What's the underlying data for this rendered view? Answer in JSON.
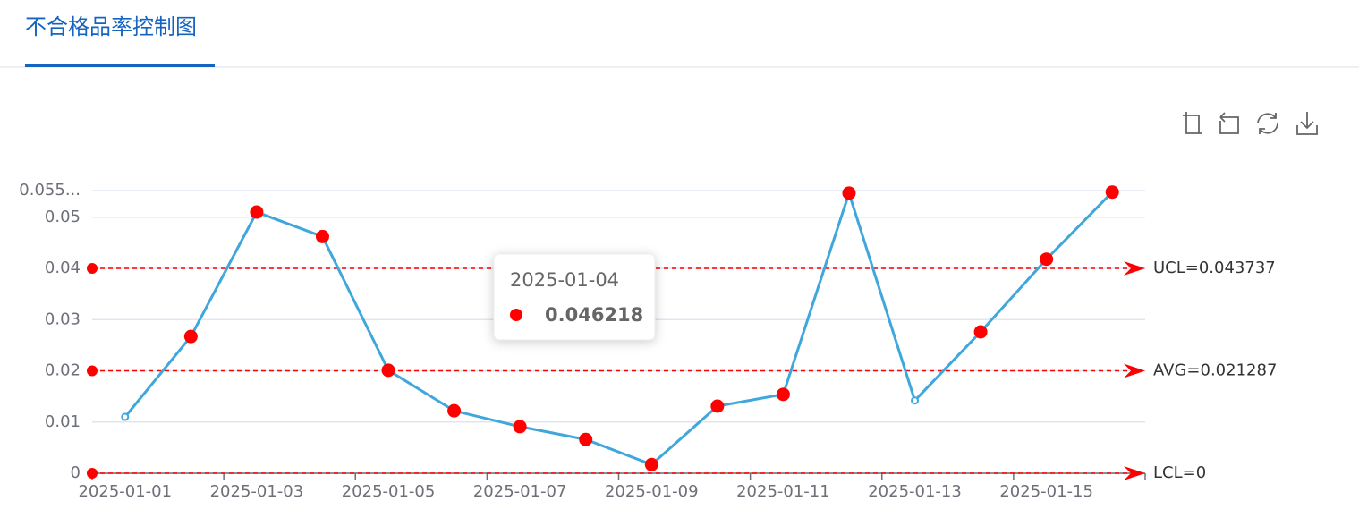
{
  "tab": {
    "title": "不合格品率控制图"
  },
  "chart_data": {
    "type": "line",
    "categories": [
      "2025-01-01",
      null,
      "2025-01-03",
      null,
      "2025-01-05",
      null,
      "2025-01-07",
      null,
      "2025-01-09",
      null,
      "2025-01-11",
      null,
      "2025-01-13",
      null,
      "2025-01-15",
      null
    ],
    "series": [
      {
        "name": "不合格品率",
        "color": "#3fa7dc",
        "values": [
          0.011,
          0.0267,
          0.051,
          0.046218,
          0.0201,
          0.0122,
          0.0091,
          0.0066,
          0.0017,
          0.0131,
          0.0154,
          0.0547,
          0.0142,
          0.0276,
          0.0418,
          0.0549
        ],
        "marker_colors": [
          "#ffffff",
          "#ff0000",
          "#ff0000",
          "#ff0000",
          "#ff0000",
          "#ff0000",
          "#ff0000",
          "#ff0000",
          "#ff0000",
          "#ff0000",
          "#ff0000",
          "#ff0000",
          "#ffffff",
          "#ff0000",
          "#ff0000",
          "#ff0000"
        ]
      }
    ],
    "control_lines": [
      {
        "name": "UCL=0.043737",
        "value": 0.04,
        "color": "#ff0000"
      },
      {
        "name": "AVG=0.021287",
        "value": 0.02,
        "color": "#ff0000"
      },
      {
        "name": "LCL=0",
        "value": 0,
        "color": "#ff0000"
      }
    ],
    "ylim": [
      0,
      0.0552
    ],
    "yticks": [
      0,
      0.01,
      0.02,
      0.03,
      0.04,
      0.05,
      {
        "value": 0.0552,
        "label": "0.055..."
      }
    ],
    "grid": true,
    "tooltip": {
      "title": "2025-01-04",
      "index": 3
    }
  }
}
